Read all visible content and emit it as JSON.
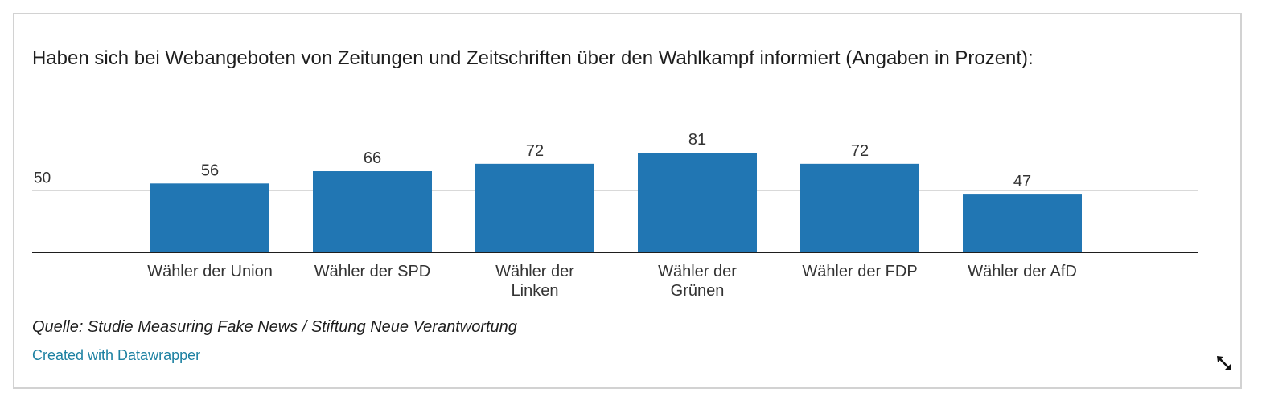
{
  "chart_data": {
    "type": "bar",
    "title": "Haben sich bei Webangeboten von Zeitungen und Zeitschriften über den Wahlkampf informiert (Angaben in Prozent):",
    "categories": [
      [
        "Wähler der Union"
      ],
      [
        "Wähler der SPD"
      ],
      [
        "Wähler der",
        "Linken"
      ],
      [
        "Wähler der",
        "Grünen"
      ],
      [
        "Wähler der FDP"
      ],
      [
        "Wähler der AfD"
      ]
    ],
    "values": [
      56,
      66,
      72,
      81,
      72,
      47
    ],
    "value_labels": [
      "56",
      "66",
      "72",
      "81",
      "72",
      "47"
    ],
    "y_ticks": [
      50
    ],
    "y_tick_labels": [
      "50"
    ],
    "ylim": [
      0,
      100
    ],
    "grid": true,
    "legend": "none",
    "bar_color": "#2176b3",
    "gridline_color": "#d9d9d9",
    "baseline_color": "#1e1e1e"
  },
  "footer": {
    "source": "Quelle: Studie Measuring Fake News / Stiftung Neue Verantwortung",
    "credit": "Created with Datawrapper",
    "credit_color": "#1d81a2"
  },
  "icons": {
    "resize": "resize-diagonal-icon"
  }
}
